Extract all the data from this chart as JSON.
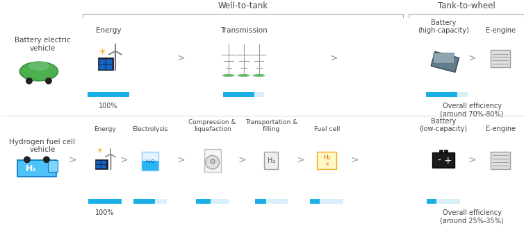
{
  "bg_color": "#ffffff",
  "title_font_size": 8.5,
  "label_font_size": 7.5,
  "small_font_size": 7,
  "text_color": "#444444",
  "blue_bar_color": "#1aafe6",
  "white_bar_color": "#d9f0fb",
  "border_color": "#aaaaaa",
  "row1": {
    "vehicle_label": "Battery electric\nvehicle",
    "steps": [
      "Energy",
      "Transmission"
    ],
    "bar_fills": [
      1.0,
      0.75
    ],
    "section_label": "Well-to-tank",
    "tank_steps": [
      "Battery\n(high-capacity)",
      "E-engine"
    ],
    "tank_bar_fill": 0.75,
    "tank_section_label": "Tank-to-wheel",
    "efficiency_label": "Overall efficiency\n(around 70%-80%)"
  },
  "row2": {
    "vehicle_label": "Hydrogen fuel cell\nvehicle",
    "steps": [
      "Energy",
      "Electrolysis",
      "Compression &\nliquefaction",
      "Transportation &\nfilling",
      "Fuel cell"
    ],
    "bar_fills": [
      1.0,
      0.65,
      0.45,
      0.35,
      0.28
    ],
    "tank_steps": [
      "Battery\n(low-capacity)",
      "E-engine"
    ],
    "tank_bar_fill": 0.28,
    "efficiency_label": "Overall efficiency\n(around 25%-35%)"
  }
}
